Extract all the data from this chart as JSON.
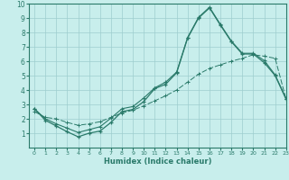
{
  "xlabel": "Humidex (Indice chaleur)",
  "xlim": [
    -0.5,
    23
  ],
  "ylim": [
    0,
    10
  ],
  "xticks": [
    0,
    1,
    2,
    3,
    4,
    5,
    6,
    7,
    8,
    9,
    10,
    11,
    12,
    13,
    14,
    15,
    16,
    17,
    18,
    19,
    20,
    21,
    22,
    23
  ],
  "yticks": [
    1,
    2,
    3,
    4,
    5,
    6,
    7,
    8,
    9,
    10
  ],
  "bg_color": "#c8eeec",
  "line_color": "#2a7a6a",
  "grid_color": "#9ecece",
  "line1_x": [
    0,
    1,
    2,
    3,
    4,
    5,
    6,
    7,
    8,
    9,
    10,
    11,
    12,
    13,
    14,
    15,
    16,
    17,
    18,
    19,
    20,
    21,
    22,
    23
  ],
  "line1_y": [
    2.7,
    1.9,
    1.5,
    1.1,
    0.75,
    1.0,
    1.15,
    1.75,
    2.5,
    2.65,
    3.2,
    4.1,
    4.4,
    5.2,
    7.6,
    9.0,
    9.7,
    8.5,
    7.35,
    6.5,
    6.5,
    5.9,
    5.0,
    3.35
  ],
  "line2_x": [
    0,
    1,
    2,
    3,
    4,
    5,
    6,
    7,
    8,
    9,
    10,
    11,
    12,
    13,
    14,
    15,
    16,
    17,
    18,
    19,
    20,
    21,
    22,
    23
  ],
  "line2_y": [
    2.7,
    2.0,
    1.65,
    1.35,
    1.05,
    1.25,
    1.45,
    2.05,
    2.7,
    2.85,
    3.45,
    4.15,
    4.55,
    5.25,
    7.65,
    9.05,
    9.75,
    8.55,
    7.4,
    6.55,
    6.55,
    6.05,
    5.05,
    3.4
  ],
  "line3_x": [
    0,
    1,
    2,
    3,
    4,
    5,
    6,
    7,
    8,
    9,
    10,
    11,
    12,
    13,
    14,
    15,
    16,
    17,
    18,
    19,
    20,
    21,
    22,
    23
  ],
  "line3_y": [
    2.5,
    2.1,
    2.0,
    1.75,
    1.55,
    1.65,
    1.8,
    2.1,
    2.4,
    2.6,
    2.9,
    3.25,
    3.6,
    4.0,
    4.55,
    5.1,
    5.5,
    5.75,
    6.0,
    6.2,
    6.45,
    6.35,
    6.2,
    3.35
  ]
}
